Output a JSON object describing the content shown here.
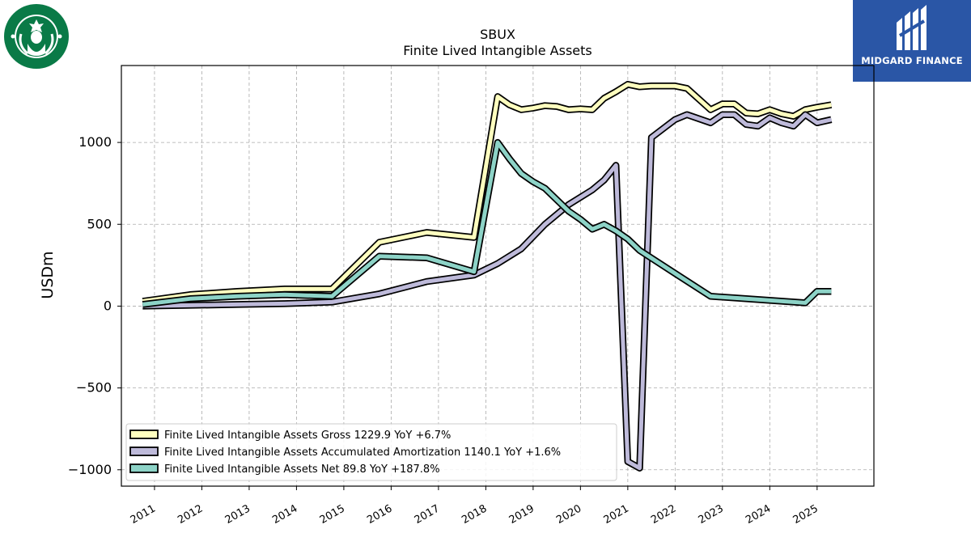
{
  "brand": {
    "left_logo": "starbucks-siren-logo",
    "right_logo_text": "MIDGARD FINANCE"
  },
  "chart_data": {
    "type": "line",
    "title": "SBUX",
    "subtitle": "Finite Lived Intangible Assets",
    "xlabel": "",
    "ylabel": "USDm",
    "ylim": [
      -1100,
      1470
    ],
    "xlim": [
      2010.3,
      2026.2
    ],
    "yticks": [
      1000,
      500,
      0,
      -500,
      -1000
    ],
    "ytick_labels": [
      "1000",
      "500",
      "0",
      "−500",
      "−1000"
    ],
    "xticks": [
      2011,
      2012,
      2013,
      2014,
      2015,
      2016,
      2017,
      2018,
      2019,
      2020,
      2021,
      2022,
      2023,
      2024,
      2025
    ],
    "xtick_labels": [
      "2011",
      "2012",
      "2013",
      "2014",
      "2015",
      "2016",
      "2017",
      "2018",
      "2019",
      "2020",
      "2021",
      "2022",
      "2023",
      "2024",
      "2025"
    ],
    "grid": true,
    "legend_position": "lower-left",
    "series": [
      {
        "name": "Finite Lived Intangible Assets Gross",
        "legend_label": "Finite Lived Intangible Assets Gross  1229.9 YoY +6.7%",
        "color": "#ffffbf",
        "points": [
          [
            2010.75,
            30
          ],
          [
            2011.75,
            70
          ],
          [
            2012.75,
            90
          ],
          [
            2013.75,
            105
          ],
          [
            2014.75,
            105
          ],
          [
            2015.75,
            390
          ],
          [
            2016.75,
            450
          ],
          [
            2017.75,
            420
          ],
          [
            2018.25,
            1280
          ],
          [
            2018.5,
            1230
          ],
          [
            2018.75,
            1200
          ],
          [
            2019.0,
            1210
          ],
          [
            2019.25,
            1225
          ],
          [
            2019.5,
            1220
          ],
          [
            2019.75,
            1200
          ],
          [
            2020.0,
            1205
          ],
          [
            2020.25,
            1200
          ],
          [
            2020.5,
            1270
          ],
          [
            2020.75,
            1310
          ],
          [
            2021.0,
            1355
          ],
          [
            2021.25,
            1340
          ],
          [
            2021.5,
            1345
          ],
          [
            2022.0,
            1345
          ],
          [
            2022.25,
            1330
          ],
          [
            2022.75,
            1200
          ],
          [
            2023.0,
            1235
          ],
          [
            2023.25,
            1235
          ],
          [
            2023.5,
            1180
          ],
          [
            2023.75,
            1175
          ],
          [
            2024.0,
            1200
          ],
          [
            2024.25,
            1175
          ],
          [
            2024.5,
            1160
          ],
          [
            2024.75,
            1200
          ],
          [
            2025.0,
            1215
          ],
          [
            2025.3,
            1230
          ]
        ]
      },
      {
        "name": "Finite Lived Intangible Assets Accumulated Amortization",
        "legend_label": "Finite Lived Intangible Assets Accumulated Amortization  1140.1 YoY +1.6%",
        "color": "#bebada",
        "points": [
          [
            2010.75,
            0
          ],
          [
            2011.75,
            5
          ],
          [
            2012.75,
            10
          ],
          [
            2013.75,
            15
          ],
          [
            2014.75,
            25
          ],
          [
            2015.75,
            75
          ],
          [
            2016.75,
            150
          ],
          [
            2017.75,
            190
          ],
          [
            2018.25,
            260
          ],
          [
            2018.75,
            350
          ],
          [
            2019.25,
            500
          ],
          [
            2019.75,
            620
          ],
          [
            2020.25,
            710
          ],
          [
            2020.5,
            770
          ],
          [
            2020.75,
            860
          ],
          [
            2021.0,
            -950
          ],
          [
            2021.25,
            -990
          ],
          [
            2021.5,
            1030
          ],
          [
            2022.0,
            1140
          ],
          [
            2022.25,
            1170
          ],
          [
            2022.75,
            1120
          ],
          [
            2023.0,
            1170
          ],
          [
            2023.25,
            1170
          ],
          [
            2023.5,
            1110
          ],
          [
            2023.75,
            1100
          ],
          [
            2024.0,
            1150
          ],
          [
            2024.25,
            1120
          ],
          [
            2024.5,
            1100
          ],
          [
            2024.75,
            1170
          ],
          [
            2025.0,
            1120
          ],
          [
            2025.3,
            1140
          ]
        ]
      },
      {
        "name": "Finite Lived Intangible Assets Net",
        "legend_label": "Finite Lived Intangible Assets Net  89.8 YoY +187.8%",
        "color": "#8dd3c7",
        "points": [
          [
            2010.75,
            10
          ],
          [
            2011.75,
            45
          ],
          [
            2012.75,
            60
          ],
          [
            2013.75,
            70
          ],
          [
            2014.75,
            60
          ],
          [
            2015.75,
            305
          ],
          [
            2016.75,
            295
          ],
          [
            2017.75,
            210
          ],
          [
            2018.25,
            1000
          ],
          [
            2018.5,
            900
          ],
          [
            2018.75,
            810
          ],
          [
            2019.0,
            760
          ],
          [
            2019.25,
            720
          ],
          [
            2019.5,
            650
          ],
          [
            2019.75,
            580
          ],
          [
            2020.0,
            530
          ],
          [
            2020.25,
            470
          ],
          [
            2020.5,
            500
          ],
          [
            2020.75,
            460
          ],
          [
            2021.0,
            410
          ],
          [
            2021.25,
            340
          ],
          [
            2022.0,
            200
          ],
          [
            2022.75,
            60
          ],
          [
            2023.25,
            50
          ],
          [
            2024.75,
            20
          ],
          [
            2025.0,
            90
          ],
          [
            2025.3,
            90
          ]
        ]
      }
    ]
  }
}
